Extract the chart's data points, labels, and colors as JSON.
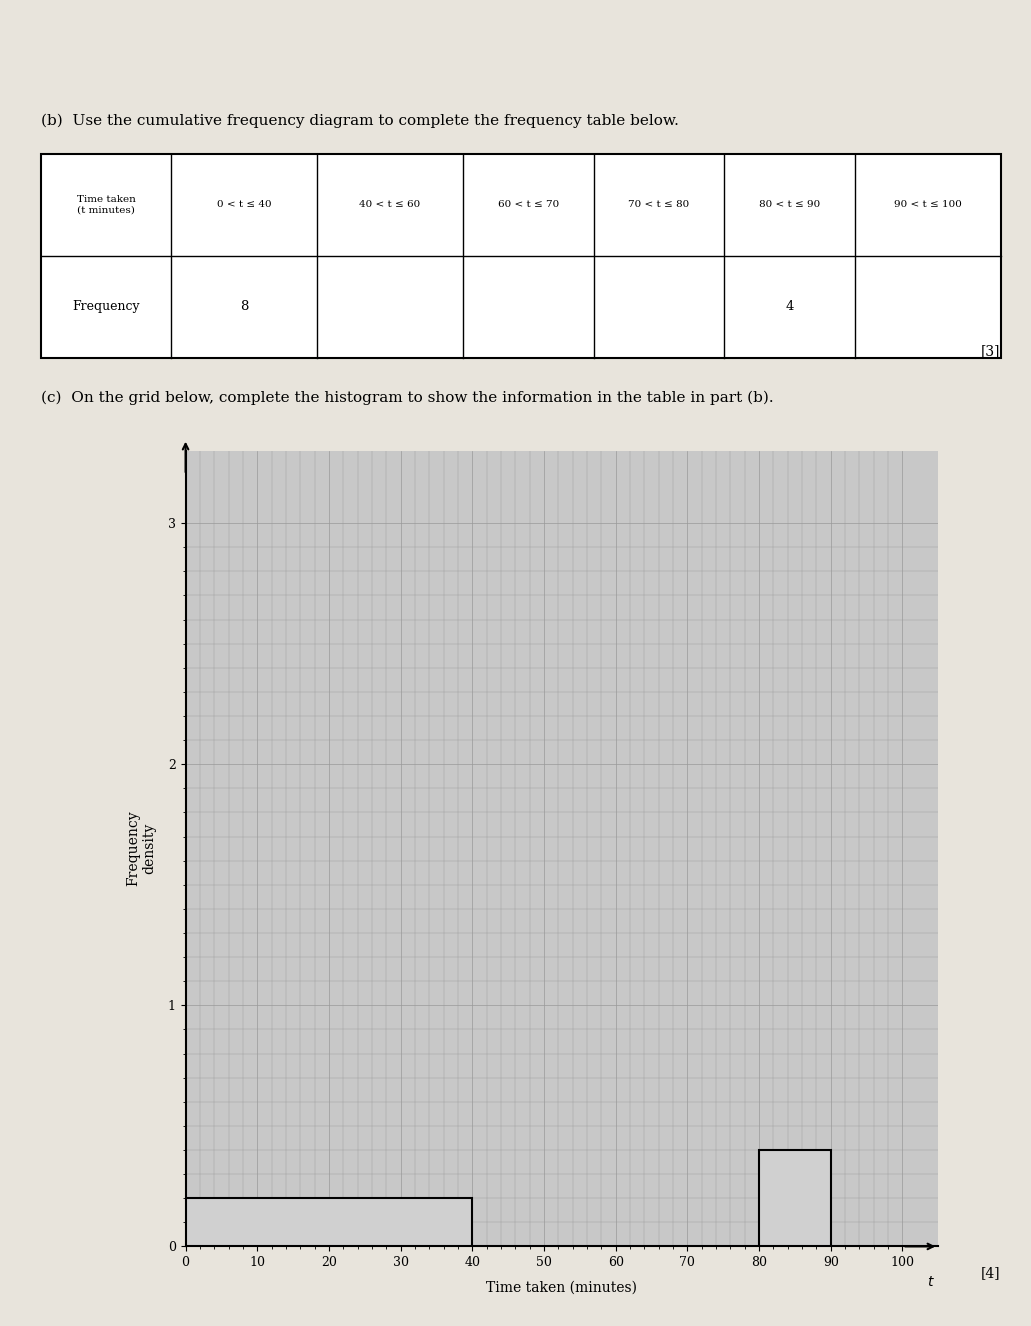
{
  "title_b": "(b)  Use the cumulative frequency diagram to complete the frequency table below.",
  "title_c": "(c)  On the grid below, complete the histogram to show the information in the table in part (b).",
  "table_headers": [
    "Time taken\n(t minutes)",
    "0 < t ≤ 40",
    "40 < t ≤ 60",
    "60 < t ≤ 70",
    "70 < t ≤ 80",
    "80 < t ≤ 90",
    "90 < t ≤ 100"
  ],
  "table_row_label": "Frequency",
  "table_values": [
    "8",
    "",
    "",
    "",
    "4",
    ""
  ],
  "marks_b": "[3]",
  "marks_c": "[4]",
  "xlabel": "Time taken (minutes)",
  "ylabel": "Frequency\ndensity",
  "xlim": [
    0,
    105
  ],
  "ylim": [
    0,
    3.3
  ],
  "yticks": [
    0,
    1,
    2,
    3
  ],
  "xticks": [
    0,
    10,
    20,
    30,
    40,
    50,
    60,
    70,
    80,
    90,
    100
  ],
  "bars": [
    {
      "x0": 0,
      "x1": 40,
      "fd": 0.2,
      "drawn": true
    },
    {
      "x0": 40,
      "x1": 60,
      "fd": 0,
      "drawn": false
    },
    {
      "x0": 60,
      "x1": 70,
      "fd": 0,
      "drawn": false
    },
    {
      "x0": 70,
      "x1": 80,
      "fd": 0,
      "drawn": false
    },
    {
      "x0": 80,
      "x1": 90,
      "fd": 0.4,
      "drawn": true
    },
    {
      "x0": 90,
      "x1": 100,
      "fd": 0,
      "drawn": false
    }
  ],
  "bar_color": "#d0d0d0",
  "bar_edge_color": "#000000",
  "grid_color": "#999999",
  "bg_color": "#c8c8c8",
  "paper_color": "#e8e4dc"
}
